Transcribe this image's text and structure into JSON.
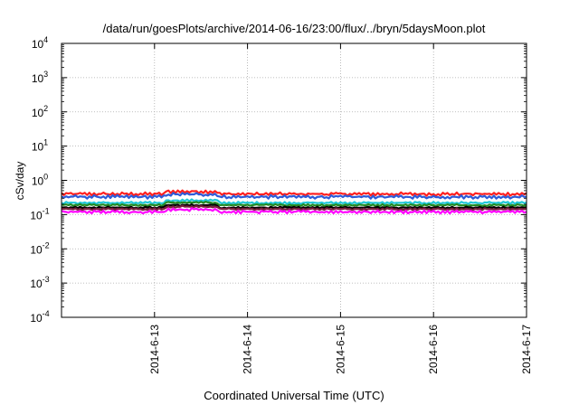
{
  "chart_data": {
    "type": "line",
    "title": "/data/run/goesPlots/archive/2014-06-16/23:00/flux/../bryn/5daysMoon.plot",
    "xlabel": "Coordinated Universal Time (UTC)",
    "ylabel": "cSv/day",
    "x_range": [
      "2014-06-12 00:00",
      "2014-06-17 00:00"
    ],
    "x_ticks": [
      "2014-6-13",
      "2014-6-14",
      "2014-6-15",
      "2014-6-16",
      "2014-6-17"
    ],
    "y_scale": "log",
    "ylim": [
      0.0001,
      10000
    ],
    "y_ticks": [
      {
        "base": "10",
        "exp": "-4"
      },
      {
        "base": "10",
        "exp": "-3"
      },
      {
        "base": "10",
        "exp": "-2"
      },
      {
        "base": "10",
        "exp": "-1"
      },
      {
        "base": "10",
        "exp": "0"
      },
      {
        "base": "10",
        "exp": "1"
      },
      {
        "base": "10",
        "exp": "2"
      },
      {
        "base": "10",
        "exp": "3"
      },
      {
        "base": "10",
        "exp": "4"
      }
    ],
    "grid": true,
    "series": [
      {
        "color": "#ff2020",
        "level": 0.4,
        "noise": 0.09
      },
      {
        "color": "#2e5bd8",
        "level": 0.33,
        "noise": 0.09
      },
      {
        "color": "#20c8d8",
        "level": 0.22,
        "noise": 0.06
      },
      {
        "color": "#228b22",
        "level": 0.19,
        "noise": 0.05
      },
      {
        "color": "#000000",
        "level": 0.16,
        "noise": 0.05
      },
      {
        "color": "#7a1f3d",
        "level": 0.145,
        "noise": 0.05
      },
      {
        "color": "#ff00ff",
        "level": 0.12,
        "noise": 0.08
      }
    ]
  }
}
